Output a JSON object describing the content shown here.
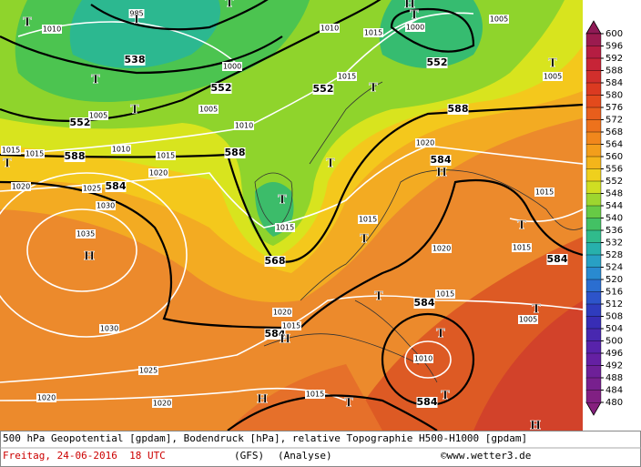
{
  "footer": {
    "description": "500 hPa Geopotential [gpdam], Bodendruck [hPa], relative Topographie H500-H1000 [gpdam]",
    "date": "Freitag, 24-06-2016  18 UTC",
    "model": "(GFS)",
    "run": "(Analyse)",
    "copyright": "©www.wetter3.de"
  },
  "legend": {
    "values": [
      600,
      596,
      592,
      588,
      584,
      580,
      576,
      572,
      568,
      564,
      560,
      556,
      552,
      548,
      544,
      540,
      536,
      532,
      528,
      524,
      520,
      516,
      512,
      508,
      504,
      500,
      496,
      492,
      488,
      484,
      480
    ]
  },
  "map_labels": [
    "538",
    "552",
    "552",
    "552",
    "552",
    "588",
    "588",
    "588",
    "584",
    "584",
    "568",
    "584",
    "584",
    "584",
    "584",
    "1010",
    "985",
    "1010",
    "1000",
    "1005",
    "1015",
    "1000",
    "1015",
    "1005",
    "1005",
    "1010",
    "1010",
    "1015",
    "1015",
    "1015",
    "1020",
    "1020",
    "1025",
    "1030",
    "1035",
    "1020",
    "1015",
    "1015",
    "1020",
    "1015",
    "1015",
    "1015",
    "1005",
    "1020",
    "1015",
    "1030",
    "1025",
    "1020",
    "1020",
    "1015",
    "1010",
    "1005",
    "T",
    "T",
    "T",
    "T",
    "T",
    "T",
    "T",
    "T",
    "T",
    "T",
    "T",
    "T",
    "T",
    "T",
    "T",
    "T",
    "T",
    "T",
    "H",
    "H",
    "H",
    "H",
    "H",
    "H"
  ]
}
